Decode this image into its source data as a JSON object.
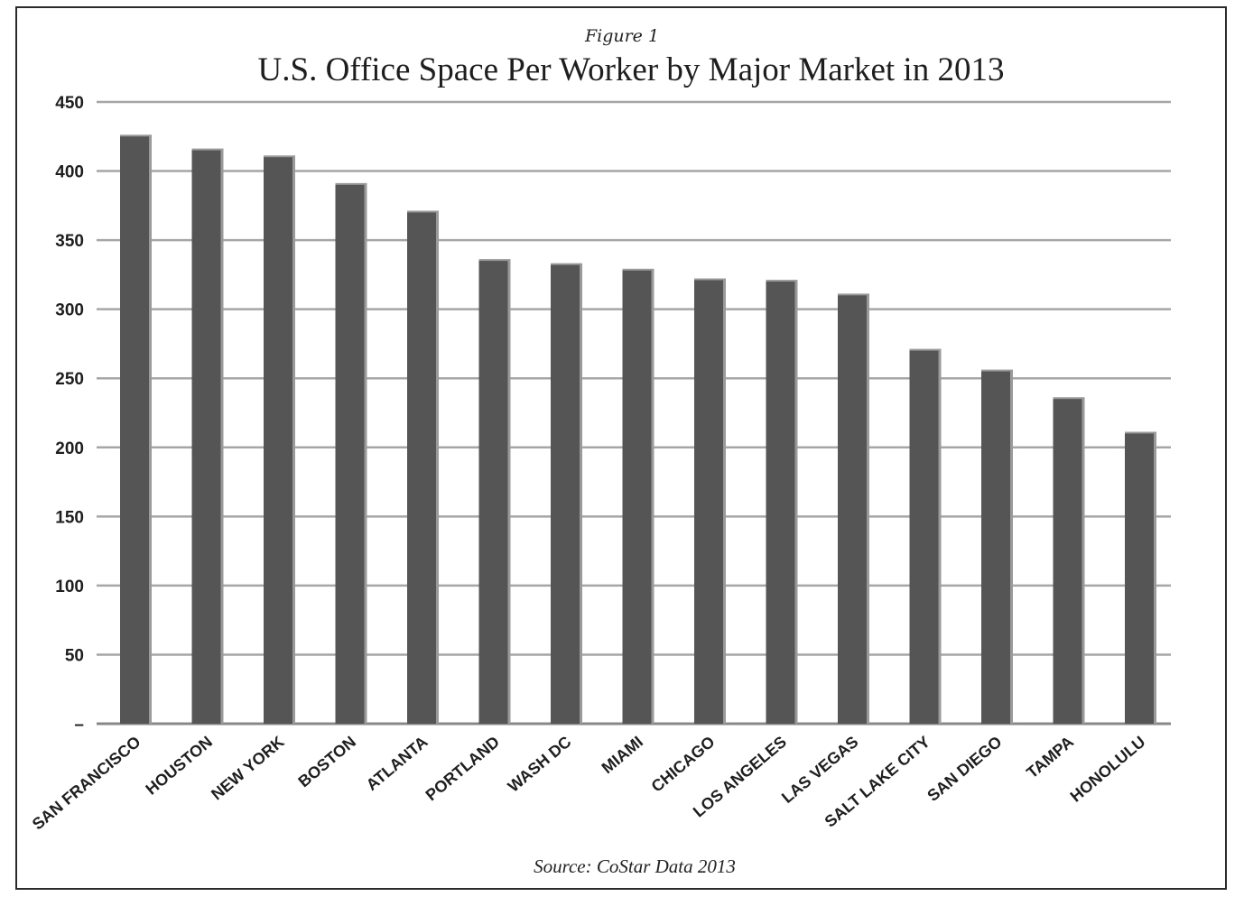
{
  "figure_label": "Figure 1",
  "source": "Source: CoStar Data 2013",
  "colors": {
    "bar": "#555555",
    "bar_shadow": "#9a9a9a",
    "grid": "#a6a6a6",
    "axis": "#888888"
  },
  "chart_data": {
    "type": "bar",
    "title": "U.S. Office Space Per Worker by Major Market in 2013",
    "xlabel": "",
    "ylabel": "",
    "ylim": [
      0,
      450
    ],
    "yticks": [
      0,
      50,
      100,
      150,
      200,
      250,
      300,
      350,
      400,
      450
    ],
    "ytick_labels": [
      "–",
      "50",
      "100",
      "150",
      "200",
      "250",
      "300",
      "350",
      "400",
      "450"
    ],
    "grid": true,
    "categories": [
      "SAN FRANCISCO",
      "HOUSTON",
      "NEW YORK",
      "BOSTON",
      "ATLANTA",
      "PORTLAND",
      "WASH DC",
      "MIAMI",
      "CHICAGO",
      "LOS ANGELES",
      "LAS VEGAS",
      "SALT LAKE CITY",
      "SAN DIEGO",
      "TAMPA",
      "HONOLULU"
    ],
    "values": [
      425,
      415,
      410,
      390,
      370,
      335,
      332,
      328,
      321,
      320,
      310,
      270,
      255,
      235,
      210
    ]
  }
}
